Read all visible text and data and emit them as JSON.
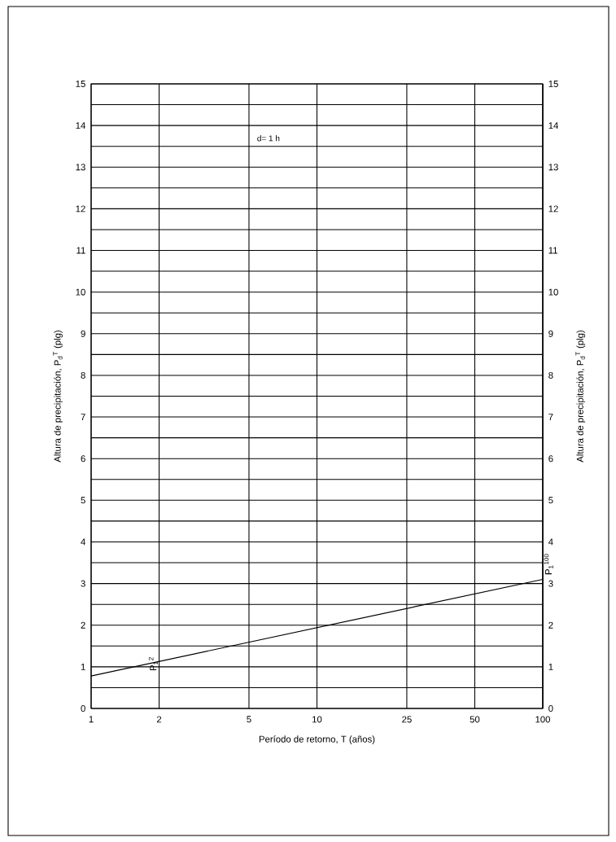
{
  "chart_data": {
    "type": "line",
    "xlabel": "Período de retorno, T  (años)",
    "ylabel": "Altura de precipitación, P$_{d}$$^{T}$  (plg)",
    "y2label": "Altura de precipitación, P$_{d}$$^{T}$  (plg)",
    "log": "x",
    "xlim": [
      1,
      100
    ],
    "xticks": [
      1,
      2,
      5,
      10,
      25,
      50,
      100
    ],
    "ylim": [
      0,
      15
    ],
    "yticks": [
      0,
      {
        "value": 0.5,
        "label": null
      },
      1,
      {
        "value": 1.5,
        "label": null
      },
      2,
      {
        "value": 2.5,
        "label": null
      },
      3,
      {
        "value": 3.5,
        "label": null
      },
      4,
      {
        "value": 4.5,
        "label": null
      },
      5,
      {
        "value": 5.5,
        "label": null
      },
      6,
      {
        "value": 6.5,
        "label": null
      },
      7,
      {
        "value": 7.5,
        "label": null
      },
      8,
      {
        "value": 8.5,
        "label": null
      },
      9,
      {
        "value": 9.5,
        "label": null
      },
      10,
      {
        "value": 10.5,
        "label": null
      },
      11,
      {
        "value": 11.5,
        "label": null
      },
      12,
      {
        "value": 12.5,
        "label": null
      },
      13,
      {
        "value": 13.5,
        "label": null
      },
      14,
      {
        "value": 14.5,
        "label": null
      },
      15
    ],
    "y2lim": [
      0,
      15
    ],
    "y2ticks": [
      0,
      1,
      2,
      3,
      4,
      5,
      6,
      7,
      8,
      9,
      10,
      11,
      12,
      13,
      14,
      15
    ],
    "grid": true,
    "marker": "none",
    "line_style": "solid",
    "series": [
      {
        "color": "#000000",
        "x": [
          1,
          100
        ],
        "values": [
          0.78,
          3.1
        ]
      }
    ],
    "annotations": [
      "d= 1 h",
      {
        "text": "P$_{1}$$^{2}$",
        "x": 2,
        "y": 1.1
      },
      {
        "text": "P$_{1}$$^{100}$",
        "x": 100,
        "y": 3.1
      }
    ]
  }
}
